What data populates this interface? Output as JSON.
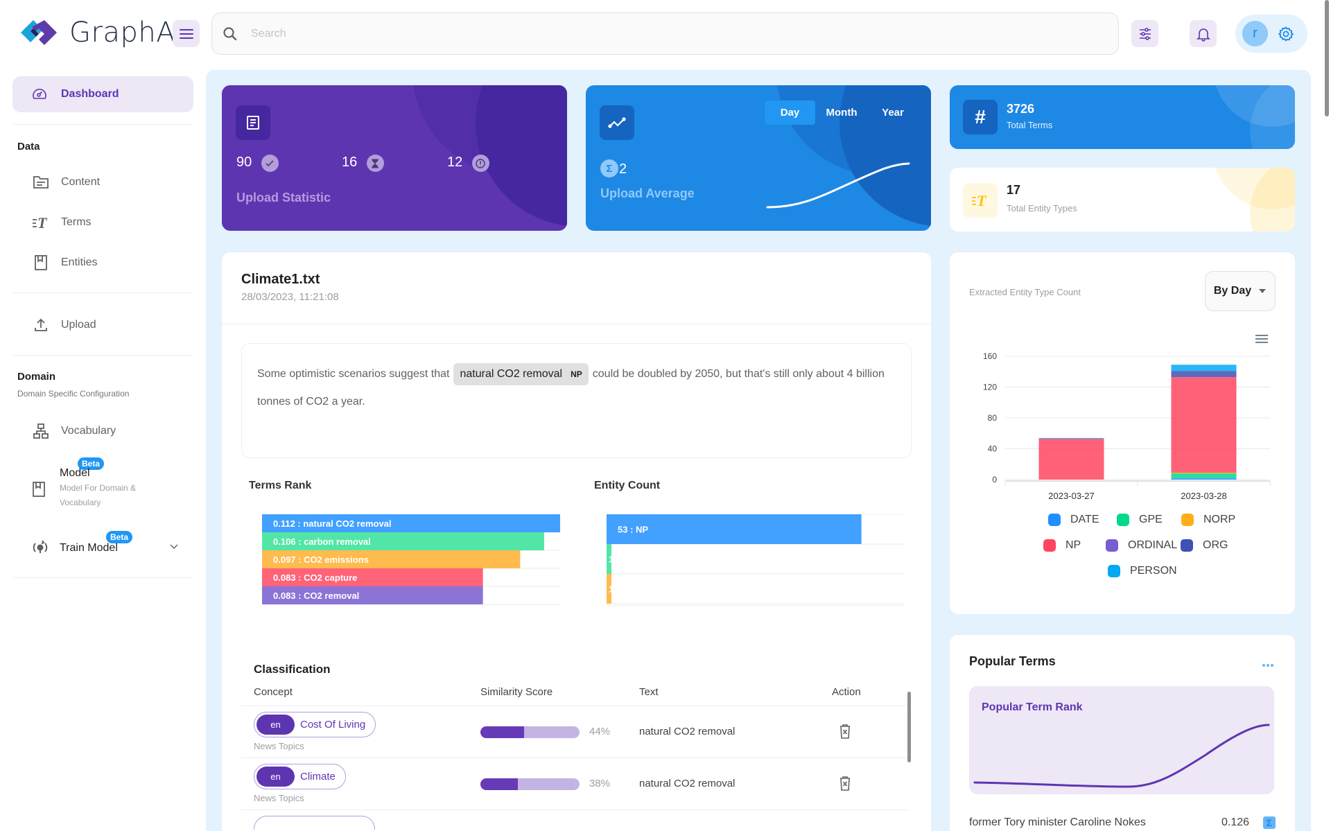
{
  "app": {
    "name": "GraphAI"
  },
  "header": {
    "search_placeholder": "Search",
    "avatar_initial": "r"
  },
  "sidebar": {
    "dashboard": "Dashboard",
    "data_section": "Data",
    "data_items": [
      "Content",
      "Terms",
      "Entities"
    ],
    "upload": "Upload",
    "domain_section": "Domain",
    "domain_subtitle": "Domain Specific Configuration",
    "vocabulary": "Vocabulary",
    "model": {
      "label": "Model",
      "badge": "Beta",
      "subtitle_1": "Model For Domain &",
      "subtitle_2": "Vocabulary"
    },
    "train_model": {
      "label": "Train Model",
      "badge": "Beta"
    }
  },
  "upload_statistic": {
    "title": "Upload Statistic",
    "completed": "90",
    "pending": "16",
    "errors": "12"
  },
  "upload_average": {
    "title": "Upload Average",
    "value": "2",
    "periods": [
      "Day",
      "Month",
      "Year"
    ],
    "active_period": "Day"
  },
  "total_terms": {
    "value": "3726",
    "label": "Total Terms"
  },
  "total_entity_types": {
    "value": "17",
    "label": "Total Entity Types"
  },
  "document": {
    "title": "Climate1.txt",
    "date": "28/03/2023, 11:21:08",
    "text_before": "Some optimistic scenarios suggest that",
    "entity_text": "natural CO2 removal",
    "entity_type": "NP",
    "text_after": "could be doubled by 2050, but that's still only about 4 billion tonnes of CO2 a year."
  },
  "chart_data": [
    {
      "type": "bar",
      "orientation": "horizontal",
      "title": "Terms Rank",
      "categories": [
        "natural CO2 removal",
        "carbon removal",
        "CO2 emissions",
        "CO2 capture",
        "CO2 removal"
      ],
      "values": [
        0.112,
        0.106,
        0.097,
        0.083,
        0.083
      ],
      "labels": [
        "0.112 : natural CO2 removal",
        "0.106 : carbon removal",
        "0.097 : CO2 emissions",
        "0.083 : CO2 capture",
        "0.083 : CO2 removal"
      ],
      "colors": [
        "#42a0ff",
        "#52e6a6",
        "#ffbb4d",
        "#ff6378",
        "#8c74d6"
      ],
      "xlim": [
        0,
        0.112
      ]
    },
    {
      "type": "bar",
      "orientation": "horizontal",
      "title": "Entity Count",
      "categories": [
        "NP",
        "GPE",
        "NORP"
      ],
      "values": [
        53,
        1,
        1
      ],
      "labels": [
        "53 : NP",
        "1",
        "1"
      ],
      "colors": [
        "#42a0ff",
        "#52e6a6",
        "#ffbb4d"
      ],
      "xlim": [
        0,
        62
      ]
    },
    {
      "type": "bar",
      "stacked": true,
      "title": "Extracted Entity Type Count",
      "categories": [
        "2023-03-27",
        "2023-03-28"
      ],
      "ylim": [
        0,
        160
      ],
      "yticks": [
        0,
        40,
        80,
        120,
        160
      ],
      "series": [
        {
          "name": "DATE",
          "color": "#1e90ff",
          "values": [
            0,
            2
          ]
        },
        {
          "name": "GPE",
          "color": "#00d98b",
          "values": [
            0,
            6
          ]
        },
        {
          "name": "NORP",
          "color": "#ffae1a",
          "values": [
            0,
            1
          ]
        },
        {
          "name": "NP",
          "color": "#ff4560",
          "values": [
            53,
            124
          ]
        },
        {
          "name": "ORDINAL",
          "color": "#775dd0",
          "values": [
            0,
            0
          ]
        },
        {
          "name": "ORG",
          "color": "#3f51b5",
          "values": [
            0,
            8
          ]
        },
        {
          "name": "PERSON",
          "color": "#03a9f4",
          "values": [
            1,
            8
          ]
        }
      ],
      "legend": "bottom"
    }
  ],
  "classification": {
    "title": "Classification",
    "columns": [
      "Concept",
      "Similarity Score",
      "Text",
      "Action"
    ],
    "rows": [
      {
        "lang": "en",
        "concept": "Cost Of Living",
        "scheme": "News Topics",
        "score": 44,
        "score_label": "44%",
        "text": "natural CO2 removal"
      },
      {
        "lang": "en",
        "concept": "Climate",
        "scheme": "News Topics",
        "score": 38,
        "score_label": "38%",
        "text": "natural CO2 removal"
      }
    ]
  },
  "entity_type_panel": {
    "title": "Extracted Entity Type Count",
    "dropdown": "By Day"
  },
  "popular_terms": {
    "title": "Popular Terms",
    "chart_title": "Popular Term Rank",
    "items": [
      {
        "term": "former Tory minister Caroline Nokes",
        "score": "0.126"
      }
    ]
  }
}
